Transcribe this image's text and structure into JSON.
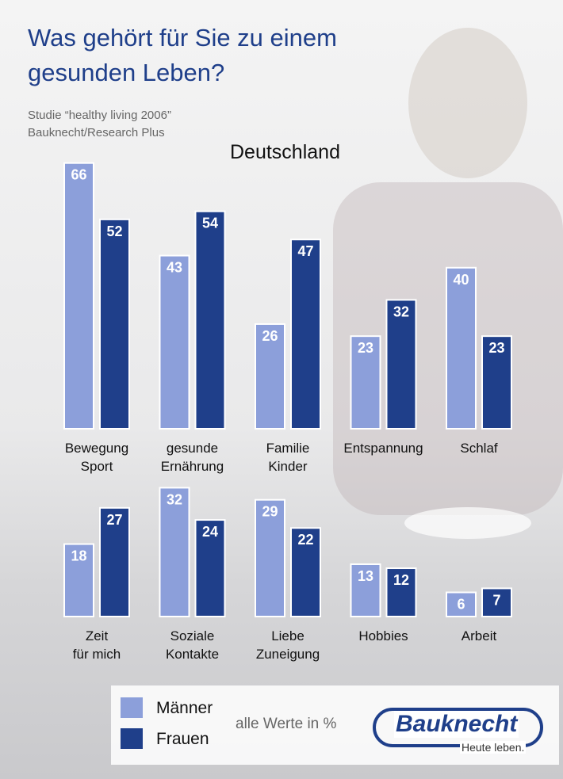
{
  "chart_data": {
    "type": "bar",
    "title": "Was gehört für Sie zu einem gesunden Leben?",
    "notes": [
      "Studie “healthy living 2006”",
      "Bauknecht/Research Plus"
    ],
    "region": "Deutschland",
    "unit_note": "alle Werte in %",
    "categories": [
      "Bewegung\nSport",
      "gesunde\nErnährung",
      "Familie\nKinder",
      "Entspannung",
      "Schlaf",
      "Zeit\nfür mich",
      "Soziale\nKontakte",
      "Liebe\nZuneigung",
      "Hobbies",
      "Arbeit"
    ],
    "series": [
      {
        "name": "Männer",
        "color": "#8c9fda",
        "values": [
          66,
          43,
          26,
          23,
          40,
          18,
          32,
          29,
          13,
          6
        ]
      },
      {
        "name": "Frauen",
        "color": "#1f3f8a",
        "values": [
          52,
          54,
          47,
          32,
          23,
          27,
          24,
          22,
          12,
          7
        ]
      }
    ]
  },
  "brand": {
    "name": "Bauknecht",
    "slogan": "Heute leben."
  }
}
